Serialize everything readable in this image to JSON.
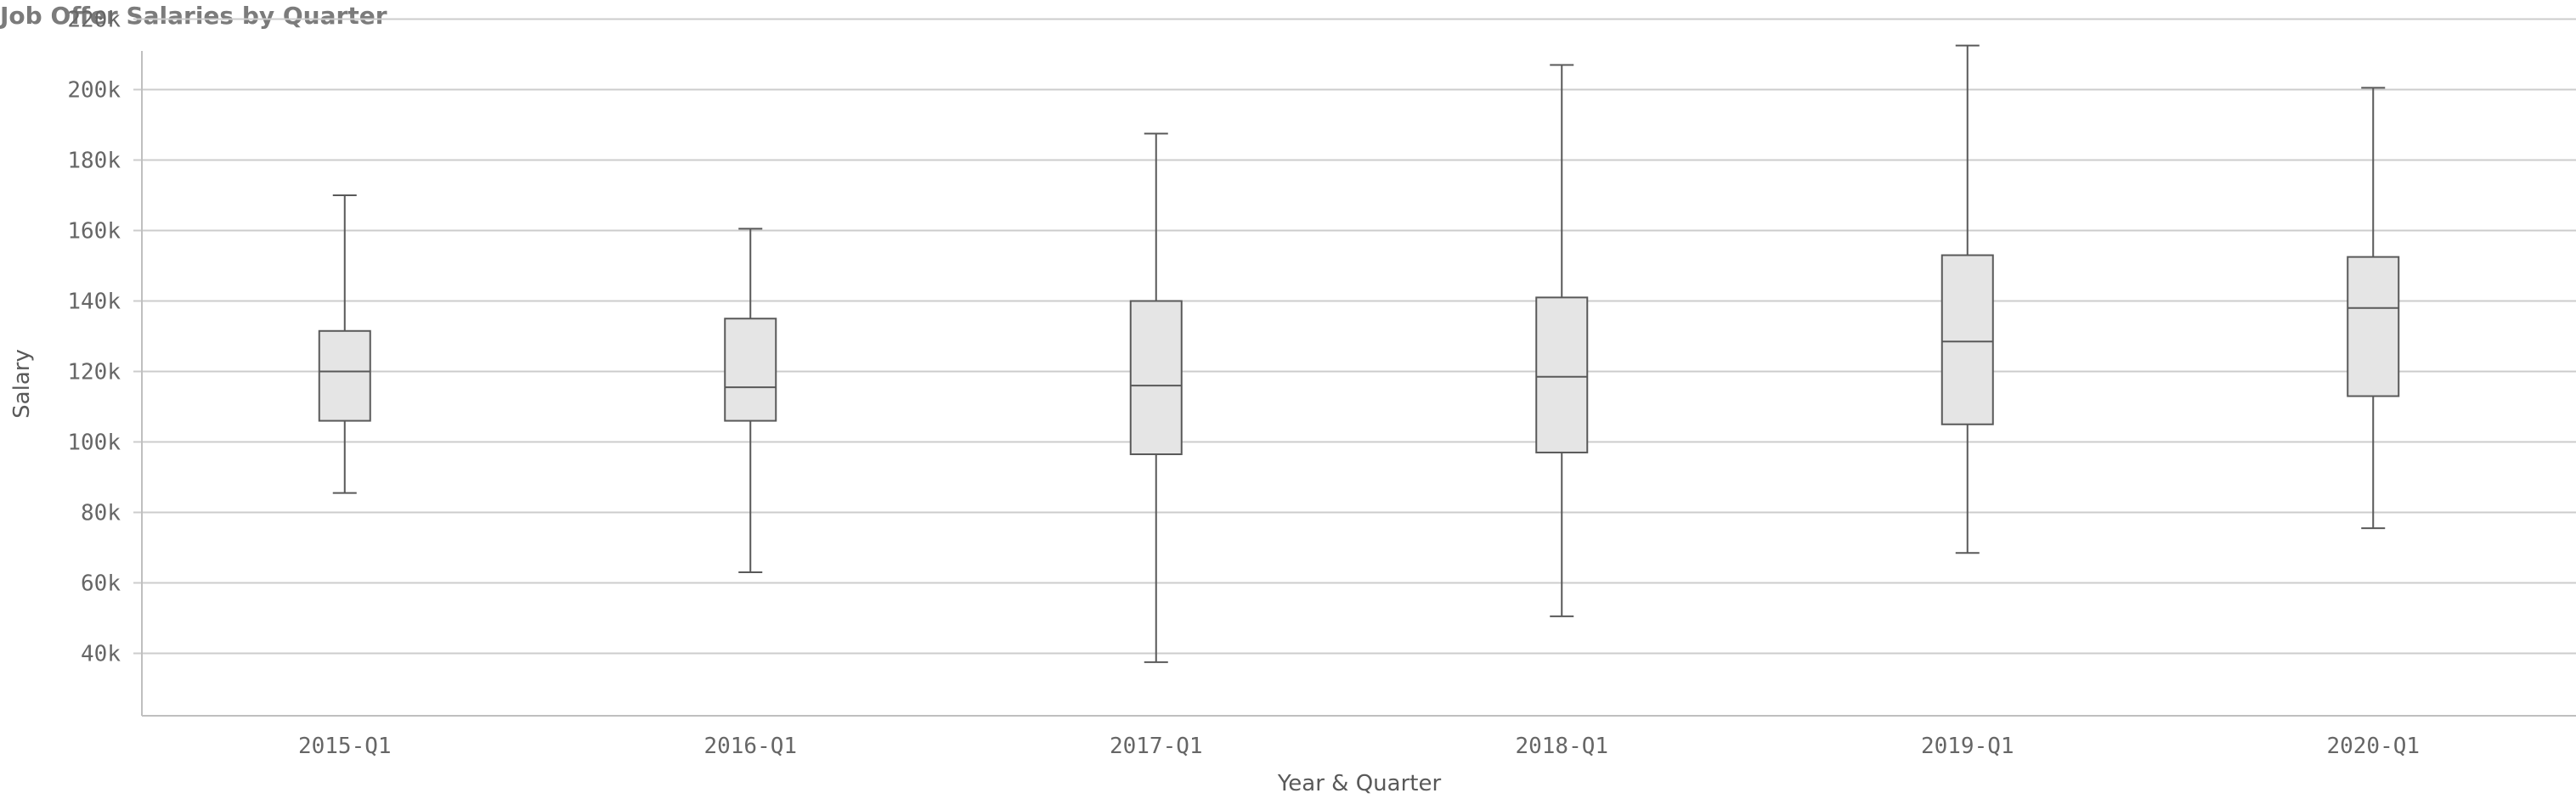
{
  "title": "Job Offer Salaries by Quarter",
  "colors": {
    "box_fill": "#e5e5e5",
    "box_stroke": "#595959",
    "gridline": "#cccccc",
    "axis": "#bfbfbf",
    "title": "#7b7b7b"
  },
  "chart_data": {
    "type": "boxplot",
    "title": "Job Offer Salaries by Quarter",
    "xlabel": "Year & Quarter",
    "ylabel": "Salary",
    "ylim": [
      20000,
      230000
    ],
    "yticks": [
      40000,
      60000,
      80000,
      100000,
      120000,
      140000,
      160000,
      180000,
      200000,
      220000
    ],
    "ytick_labels": [
      "40k",
      "60k",
      "80k",
      "100k",
      "120k",
      "140k",
      "160k",
      "180k",
      "200k",
      "220k"
    ],
    "grid": true,
    "categories": [
      "2015-Q1",
      "2016-Q1",
      "2017-Q1",
      "2018-Q1",
      "2019-Q1",
      "2020-Q1"
    ],
    "boxes": [
      {
        "category": "2015-Q1",
        "min": 85500,
        "q1": 106000,
        "median": 120000,
        "q3": 131500,
        "max": 170000
      },
      {
        "category": "2016-Q1",
        "min": 63000,
        "q1": 106000,
        "median": 115500,
        "q3": 135000,
        "max": 160500
      },
      {
        "category": "2017-Q1",
        "min": 37500,
        "q1": 96500,
        "median": 116000,
        "q3": 140000,
        "max": 187500
      },
      {
        "category": "2018-Q1",
        "min": 50500,
        "q1": 97000,
        "median": 118500,
        "q3": 141000,
        "max": 207000
      },
      {
        "category": "2019-Q1",
        "min": 68500,
        "q1": 105000,
        "median": 128500,
        "q3": 153000,
        "max": 212500
      },
      {
        "category": "2020-Q1",
        "min": 75500,
        "q1": 113000,
        "median": 138000,
        "q3": 152500,
        "max": 200500
      }
    ]
  }
}
